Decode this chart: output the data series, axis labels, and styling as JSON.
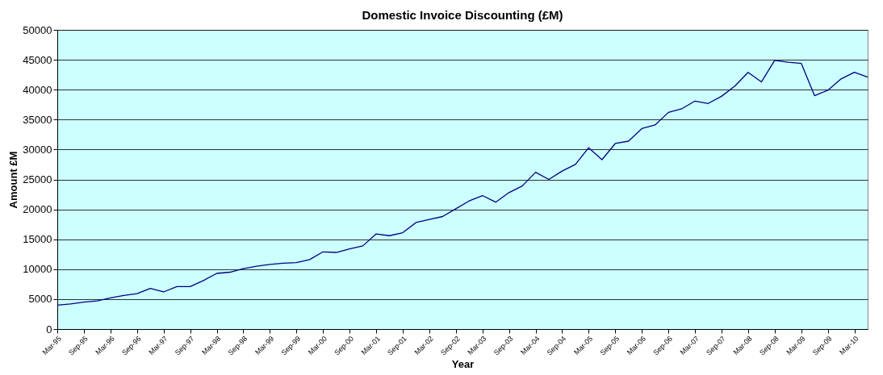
{
  "chart_data": {
    "type": "line",
    "title": "Domestic Invoice Discounting (£M)",
    "xlabel": "Year",
    "ylabel": "Amount £M",
    "categories": [
      "Mar-95",
      null,
      "Sep-95",
      null,
      "Mar-96",
      null,
      "Sep-96",
      null,
      "Mar-97",
      null,
      "Sep-97",
      null,
      "Mar-98",
      null,
      "Sep-98",
      null,
      "Mar-99",
      null,
      "Sep-99",
      null,
      "Mar-00",
      null,
      "Sep-00",
      null,
      "Mar-01",
      null,
      "Sep-01",
      null,
      "Mar-02",
      null,
      "Sep-02",
      null,
      "Mar-03",
      null,
      "Sep-03",
      null,
      "Mar-04",
      null,
      "Sep-04",
      null,
      "Mar-05",
      null,
      "Sep-05",
      null,
      "Mar-06",
      null,
      "Sep-06",
      null,
      "Mar-07",
      null,
      "Sep-07",
      null,
      "Mar-08",
      null,
      "Sep-08",
      null,
      "Mar-09",
      null,
      "Sep-09",
      null,
      "Mar-10",
      null
    ],
    "series": [
      {
        "color": "#000080",
        "values": [
          4000,
          4200,
          4500,
          4700,
          5200,
          5600,
          5900,
          6800,
          6200,
          7100,
          7100,
          8100,
          9300,
          9500,
          10100,
          10500,
          10800,
          11000,
          11100,
          11600,
          12900,
          12800,
          13400,
          13900,
          15900,
          15600,
          16100,
          17800,
          18300,
          18800,
          20100,
          21400,
          22300,
          21200,
          22800,
          23900,
          26200,
          25000,
          26400,
          27500,
          30300,
          28300,
          31000,
          31400,
          33500,
          34100,
          36200,
          36800,
          38100,
          37700,
          38900,
          40600,
          42900,
          41300,
          44900,
          44600,
          44400,
          39000,
          39900,
          41800,
          42900,
          42100
        ]
      }
    ],
    "ylim": [
      0,
      50000
    ],
    "yticks": [
      0,
      5000,
      10000,
      15000,
      20000,
      25000,
      30000,
      35000,
      40000,
      45000,
      50000
    ],
    "grid": "y",
    "line_style": "solid"
  }
}
